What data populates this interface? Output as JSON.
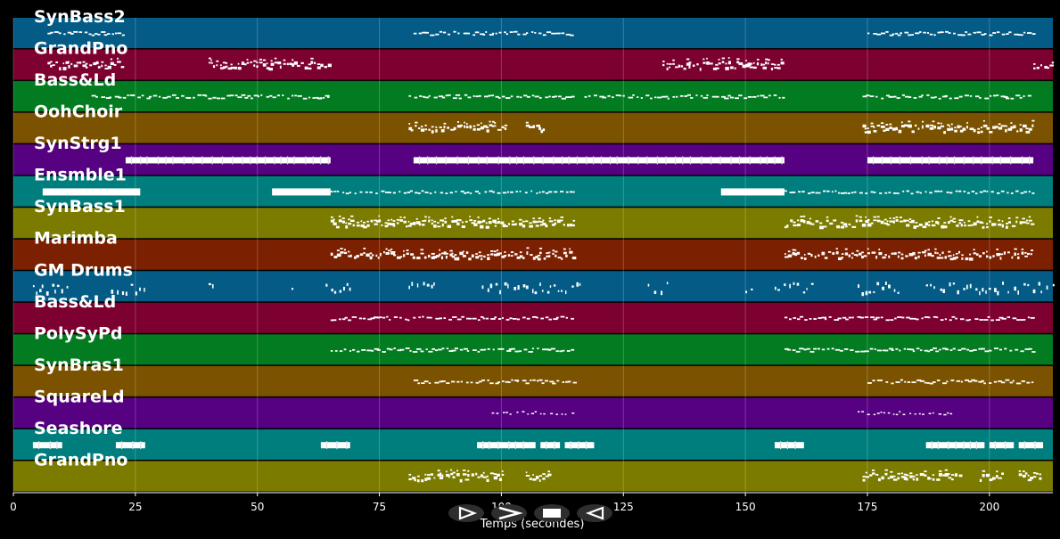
{
  "chart_data": {
    "type": "piano-roll",
    "xlabel": "Temps (secondes)",
    "xlim": [
      0,
      213
    ],
    "xticks": [
      0,
      25,
      50,
      75,
      100,
      125,
      150,
      175,
      200
    ],
    "grid": true,
    "background": "#000000",
    "tracks": [
      {
        "name": "SynBass2",
        "color": "#045b85",
        "style": "notes",
        "segments": [
          [
            7,
            23
          ],
          [
            82,
            115
          ],
          [
            175,
            209
          ]
        ]
      },
      {
        "name": "GrandPno",
        "color": "#7d0130",
        "style": "chords",
        "segments": [
          [
            7,
            23
          ],
          [
            40,
            65
          ],
          [
            133,
            158
          ],
          [
            209,
            213
          ]
        ]
      },
      {
        "name": "Bass&Ld",
        "color": "#037b20",
        "style": "notes",
        "segments": [
          [
            16,
            65
          ],
          [
            81,
            115
          ],
          [
            117,
            158
          ],
          [
            174,
            209
          ]
        ]
      },
      {
        "name": "OohChoir",
        "color": "#7b5200",
        "style": "chords",
        "segments": [
          [
            81,
            101
          ],
          [
            105,
            109
          ],
          [
            174,
            209
          ]
        ]
      },
      {
        "name": "SynStrg1",
        "color": "#560082",
        "style": "long",
        "segments": [
          [
            23,
            65
          ],
          [
            82,
            158
          ],
          [
            175,
            209
          ]
        ]
      },
      {
        "name": "Ensmble1",
        "color": "#007d7d",
        "style": "mixed",
        "segments": [
          [
            6,
            26
          ],
          [
            53,
            65
          ],
          [
            65,
            115
          ],
          [
            145,
            158
          ],
          [
            158,
            209
          ]
        ]
      },
      {
        "name": "SynBass1",
        "color": "#7b7b00",
        "style": "chords",
        "segments": [
          [
            65,
            115
          ],
          [
            158,
            209
          ]
        ]
      },
      {
        "name": "Marimba",
        "color": "#7b2000",
        "style": "chords",
        "segments": [
          [
            65,
            115
          ],
          [
            158,
            209
          ]
        ]
      },
      {
        "name": "GM Drums",
        "color": "#045b85",
        "style": "drums",
        "segments": [
          [
            4,
            11
          ],
          [
            20,
            27
          ],
          [
            40,
            41
          ],
          [
            57,
            58
          ],
          [
            64,
            69
          ],
          [
            81,
            87
          ],
          [
            96,
            117
          ],
          [
            130,
            134
          ],
          [
            150,
            152
          ],
          [
            156,
            164
          ],
          [
            173,
            182
          ],
          [
            187,
            213
          ]
        ]
      },
      {
        "name": "Bass&Ld",
        "color": "#7d0130",
        "style": "notes",
        "segments": [
          [
            65,
            115
          ],
          [
            158,
            209
          ]
        ]
      },
      {
        "name": "PolySyPd",
        "color": "#037b20",
        "style": "notes",
        "segments": [
          [
            65,
            115
          ],
          [
            158,
            209
          ]
        ]
      },
      {
        "name": "SynBras1",
        "color": "#7b5200",
        "style": "notes",
        "segments": [
          [
            82,
            115
          ],
          [
            175,
            209
          ]
        ]
      },
      {
        "name": "SquareLd",
        "color": "#560082",
        "style": "sparse",
        "segments": [
          [
            98,
            115
          ],
          [
            173,
            192
          ]
        ]
      },
      {
        "name": "Seashore",
        "color": "#007d7d",
        "style": "long",
        "segments": [
          [
            4,
            10
          ],
          [
            21,
            27
          ],
          [
            63,
            69
          ],
          [
            95,
            107
          ],
          [
            108,
            112
          ],
          [
            113,
            119
          ],
          [
            156,
            162
          ],
          [
            187,
            199
          ],
          [
            200,
            205
          ],
          [
            206,
            211
          ]
        ]
      },
      {
        "name": "GrandPno",
        "color": "#7b7b00",
        "style": "chords",
        "segments": [
          [
            81,
            101
          ],
          [
            105,
            110
          ],
          [
            174,
            194
          ],
          [
            198,
            203
          ],
          [
            206,
            211
          ]
        ]
      }
    ]
  },
  "controls": {
    "play_icon": "play-icon",
    "forward_icon": "fast-forward-icon",
    "stop_icon": "stop-icon",
    "back_icon": "rewind-icon"
  }
}
